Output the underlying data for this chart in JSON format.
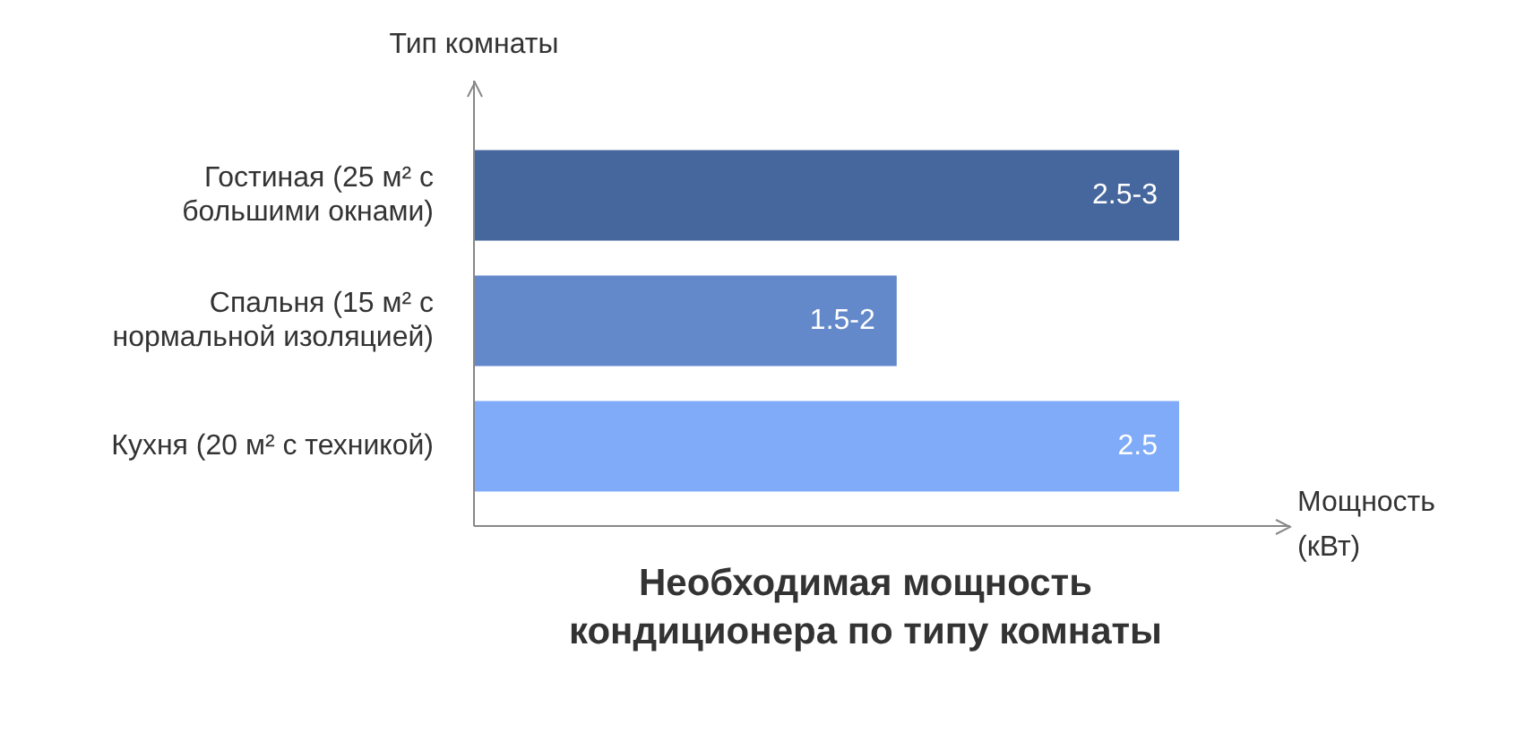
{
  "chart_data": {
    "type": "bar",
    "orientation": "horizontal",
    "title": "Необходимая мощность кондиционера по типу комнаты",
    "xlabel": "Мощность (кВт)",
    "ylabel": "Тип комнаты",
    "categories": [
      "Гостиная (25 м² с большими окнами)",
      "Спальня (15 м² с нормальной изоляцией)",
      "Кухня (20 м² с техникой)"
    ],
    "values": [
      2.5,
      1.5,
      2.5
    ],
    "colors": [
      "#46679e",
      "#6389cb",
      "#80abf8"
    ],
    "value_labels": [
      "2.5-3",
      "1.5-2",
      "2.5"
    ],
    "grid": false,
    "legend": false
  }
}
